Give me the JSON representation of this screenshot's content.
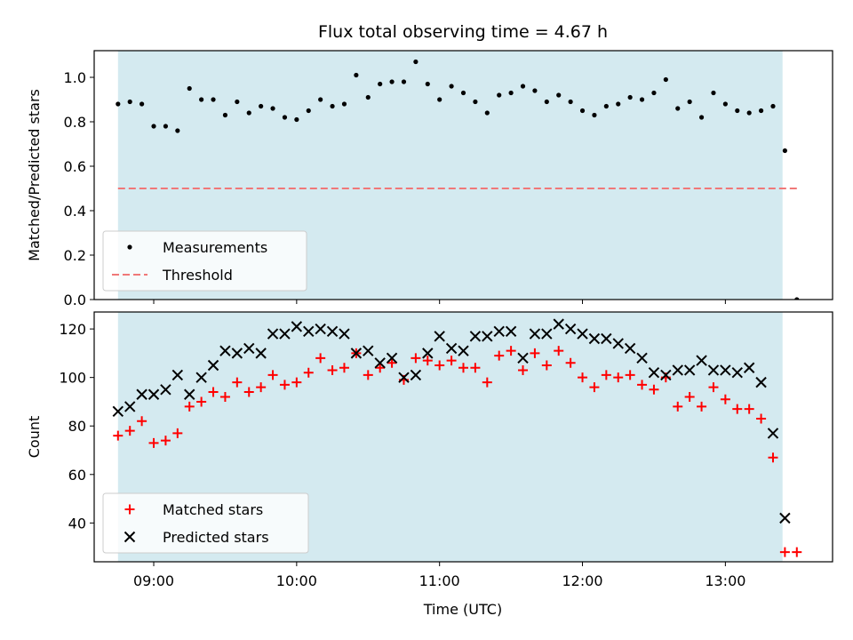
{
  "chart_data": {
    "title": "Flux total observing time = 4.67 h",
    "colors": {
      "span": "#d4eaf0",
      "measurement": "#000000",
      "threshold": "#f07878",
      "matched": "#ff0000",
      "predicted": "#000000"
    },
    "span": {
      "start": "08:45",
      "end": "13:24"
    },
    "panels": [
      {
        "type": "scatter",
        "ylabel": "Matched/Predicted stars",
        "ylim": [
          0,
          1.12
        ],
        "yticks": [
          0.0,
          0.2,
          0.4,
          0.6,
          0.8,
          1.0
        ],
        "ytick_labels": [
          "0.0",
          "0.2",
          "0.4",
          "0.6",
          "0.8",
          "1.0"
        ],
        "threshold": {
          "value": 0.5,
          "x_start": "08:45",
          "x_end": "13:30"
        },
        "legend": [
          "Measurements",
          "Threshold"
        ],
        "legend_position": "lower-left",
        "series": [
          {
            "name": "Measurements",
            "marker": "dot",
            "x": [
              "08:45",
              "08:50",
              "08:55",
              "09:00",
              "09:05",
              "09:10",
              "09:15",
              "09:20",
              "09:25",
              "09:30",
              "09:35",
              "09:40",
              "09:45",
              "09:50",
              "09:55",
              "10:00",
              "10:05",
              "10:10",
              "10:15",
              "10:20",
              "10:25",
              "10:30",
              "10:35",
              "10:40",
              "10:45",
              "10:50",
              "10:55",
              "11:00",
              "11:05",
              "11:10",
              "11:15",
              "11:20",
              "11:25",
              "11:30",
              "11:35",
              "11:40",
              "11:45",
              "11:50",
              "11:55",
              "12:00",
              "12:05",
              "12:10",
              "12:15",
              "12:20",
              "12:25",
              "12:30",
              "12:35",
              "12:40",
              "12:45",
              "12:50",
              "12:55",
              "13:00",
              "13:05",
              "13:10",
              "13:15",
              "13:20",
              "13:25",
              "13:30"
            ],
            "y": [
              0.88,
              0.89,
              0.88,
              0.78,
              0.78,
              0.76,
              0.95,
              0.9,
              0.9,
              0.83,
              0.89,
              0.84,
              0.87,
              0.86,
              0.82,
              0.81,
              0.85,
              0.9,
              0.87,
              0.88,
              1.01,
              0.91,
              0.97,
              0.98,
              0.98,
              1.07,
              0.97,
              0.9,
              0.96,
              0.93,
              0.89,
              0.84,
              0.92,
              0.93,
              0.96,
              0.94,
              0.89,
              0.92,
              0.89,
              0.85,
              0.83,
              0.87,
              0.88,
              0.91,
              0.9,
              0.93,
              0.99,
              0.86,
              0.89,
              0.82,
              0.93,
              0.88,
              0.85,
              0.84,
              0.85,
              0.87,
              0.67,
              0.0
            ]
          }
        ]
      },
      {
        "type": "scatter",
        "ylabel": "Count",
        "ylim": [
          24,
          127
        ],
        "yticks": [
          40,
          60,
          80,
          100,
          120
        ],
        "ytick_labels": [
          "40",
          "60",
          "80",
          "100",
          "120"
        ],
        "legend": [
          "Matched stars",
          "Predicted stars"
        ],
        "legend_position": "lower-left",
        "series": [
          {
            "name": "Matched stars",
            "marker": "plus",
            "x": [
              "08:45",
              "08:50",
              "08:55",
              "09:00",
              "09:05",
              "09:10",
              "09:15",
              "09:20",
              "09:25",
              "09:30",
              "09:35",
              "09:40",
              "09:45",
              "09:50",
              "09:55",
              "10:00",
              "10:05",
              "10:10",
              "10:15",
              "10:20",
              "10:25",
              "10:30",
              "10:35",
              "10:40",
              "10:45",
              "10:50",
              "10:55",
              "11:00",
              "11:05",
              "11:10",
              "11:15",
              "11:20",
              "11:25",
              "11:30",
              "11:35",
              "11:40",
              "11:45",
              "11:50",
              "11:55",
              "12:00",
              "12:05",
              "12:10",
              "12:15",
              "12:20",
              "12:25",
              "12:30",
              "12:35",
              "12:40",
              "12:45",
              "12:50",
              "12:55",
              "13:00",
              "13:05",
              "13:10",
              "13:15",
              "13:20",
              "13:25",
              "13:30"
            ],
            "y": [
              76,
              78,
              82,
              73,
              74,
              77,
              88,
              90,
              94,
              92,
              98,
              94,
              96,
              101,
              97,
              98,
              102,
              108,
              103,
              104,
              110,
              101,
              104,
              106,
              99,
              108,
              107,
              105,
              107,
              104,
              104,
              98,
              109,
              111,
              103,
              110,
              105,
              111,
              106,
              100,
              96,
              101,
              100,
              101,
              97,
              95,
              100,
              88,
              92,
              88,
              96,
              91,
              87,
              87,
              83,
              67,
              28,
              28
            ]
          },
          {
            "name": "Predicted stars",
            "marker": "x",
            "x": [
              "08:45",
              "08:50",
              "08:55",
              "09:00",
              "09:05",
              "09:10",
              "09:15",
              "09:20",
              "09:25",
              "09:30",
              "09:35",
              "09:40",
              "09:45",
              "09:50",
              "09:55",
              "10:00",
              "10:05",
              "10:10",
              "10:15",
              "10:20",
              "10:25",
              "10:30",
              "10:35",
              "10:40",
              "10:45",
              "10:50",
              "10:55",
              "11:00",
              "11:05",
              "11:10",
              "11:15",
              "11:20",
              "11:25",
              "11:30",
              "11:35",
              "11:40",
              "11:45",
              "11:50",
              "11:55",
              "12:00",
              "12:05",
              "12:10",
              "12:15",
              "12:20",
              "12:25",
              "12:30",
              "12:35",
              "12:40",
              "12:45",
              "12:50",
              "12:55",
              "13:00",
              "13:05",
              "13:10",
              "13:15",
              "13:20",
              "13:25"
            ],
            "y": [
              86,
              88,
              93,
              93,
              95,
              101,
              93,
              100,
              105,
              111,
              110,
              112,
              110,
              118,
              118,
              121,
              119,
              120,
              119,
              118,
              110,
              111,
              106,
              108,
              100,
              101,
              110,
              117,
              112,
              111,
              117,
              117,
              119,
              119,
              108,
              118,
              118,
              122,
              120,
              118,
              116,
              116,
              114,
              112,
              108,
              102,
              101,
              103,
              103,
              107,
              103,
              103,
              102,
              104,
              98,
              77,
              42
            ]
          }
        ]
      }
    ],
    "xlabel": "Time (UTC)",
    "xlim": [
      "08:35",
      "13:45"
    ],
    "xticks": [
      "09:00",
      "10:00",
      "11:00",
      "12:00",
      "13:00"
    ]
  }
}
